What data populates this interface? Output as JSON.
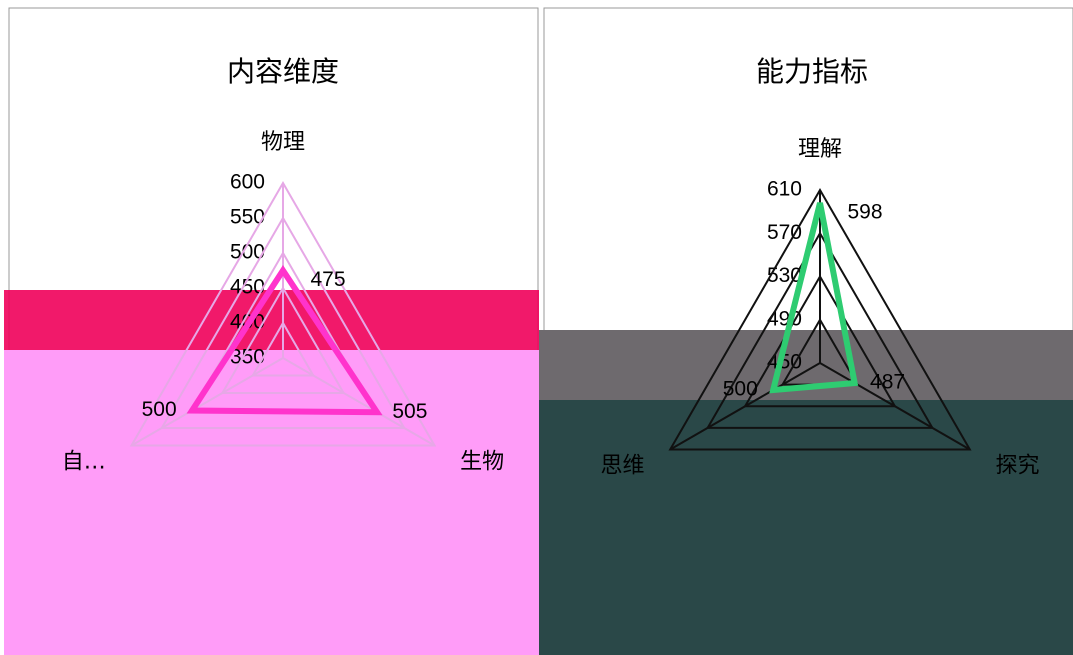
{
  "chart_data": [
    {
      "type": "radar",
      "title": "内容维度",
      "categories": [
        "物理",
        "生物",
        "自…"
      ],
      "values": [
        475,
        505,
        500
      ],
      "color": "#ff33cc",
      "rlim": [
        350,
        600
      ],
      "rticks": [
        350,
        400,
        450,
        500,
        550,
        600
      ],
      "grid": true
    },
    {
      "type": "radar",
      "title": "能力指标",
      "categories": [
        "理解",
        "探究",
        "思维"
      ],
      "values": [
        598,
        487,
        500
      ],
      "color": "#2ecc71",
      "rlim": [
        450,
        610
      ],
      "rticks": [
        450,
        490,
        530,
        570,
        610
      ],
      "grid": true
    }
  ]
}
